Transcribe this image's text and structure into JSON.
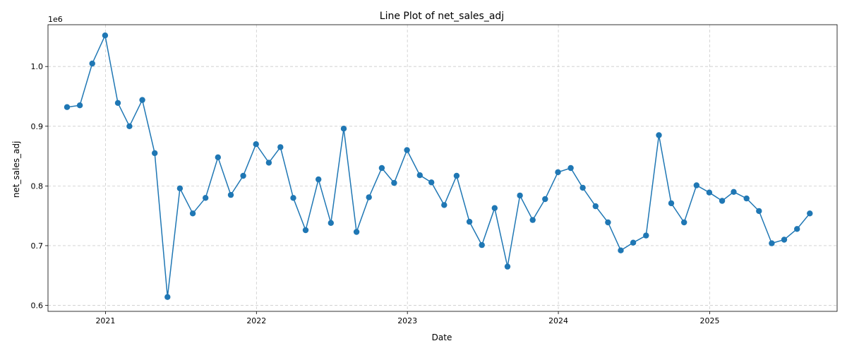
{
  "chart_data": {
    "type": "line",
    "title": "Line Plot of net_sales_adj",
    "xlabel": "Date",
    "ylabel": "net_sales_adj",
    "y_offset_label": "1e6",
    "grid": true,
    "color": "#1f77b4",
    "xlim": [
      "2020-08-15",
      "2025-11-05"
    ],
    "ylim": [
      0.59,
      1.07
    ],
    "x_ticks": [
      {
        "date": "2021-01-01",
        "label": "2021"
      },
      {
        "date": "2022-01-01",
        "label": "2022"
      },
      {
        "date": "2023-01-01",
        "label": "2023"
      },
      {
        "date": "2024-01-01",
        "label": "2024"
      },
      {
        "date": "2025-01-01",
        "label": "2025"
      }
    ],
    "y_ticks": [
      {
        "value": 0.6,
        "label": "0.6"
      },
      {
        "value": 0.7,
        "label": "0.7"
      },
      {
        "value": 0.8,
        "label": "0.8"
      },
      {
        "value": 0.9,
        "label": "0.9"
      },
      {
        "value": 1.0,
        "label": "1.0"
      }
    ],
    "series": [
      {
        "x": [
          "2020-09-30",
          "2020-10-31",
          "2020-11-30",
          "2020-12-31",
          "2021-01-31",
          "2021-02-28",
          "2021-03-31",
          "2021-04-30",
          "2021-05-31",
          "2021-06-30",
          "2021-07-31",
          "2021-08-31",
          "2021-09-30",
          "2021-10-31",
          "2021-11-30",
          "2021-12-31",
          "2022-01-31",
          "2022-02-28",
          "2022-03-31",
          "2022-04-30",
          "2022-05-31",
          "2022-06-30",
          "2022-07-31",
          "2022-08-31",
          "2022-09-30",
          "2022-10-31",
          "2022-11-30",
          "2022-12-31",
          "2023-01-31",
          "2023-02-28",
          "2023-03-31",
          "2023-04-30",
          "2023-05-31",
          "2023-06-30",
          "2023-07-31",
          "2023-08-31",
          "2023-09-30",
          "2023-10-31",
          "2023-11-30",
          "2023-12-31",
          "2024-01-31",
          "2024-02-29",
          "2024-03-31",
          "2024-04-30",
          "2024-05-31",
          "2024-06-30",
          "2024-07-31",
          "2024-08-31",
          "2024-09-30",
          "2024-10-31",
          "2024-11-30",
          "2024-12-31",
          "2025-01-31",
          "2025-02-28",
          "2025-03-31",
          "2025-04-30",
          "2025-05-31",
          "2025-06-30",
          "2025-07-31",
          "2025-08-31"
        ],
        "values": [
          0.932,
          0.935,
          1.005,
          1.052,
          0.939,
          0.9,
          0.944,
          0.855,
          0.614,
          0.796,
          0.754,
          0.78,
          0.848,
          0.785,
          0.817,
          0.87,
          0.839,
          0.865,
          0.78,
          0.726,
          0.811,
          0.738,
          0.896,
          0.723,
          0.781,
          0.83,
          0.805,
          0.86,
          0.818,
          0.806,
          0.768,
          0.817,
          0.74,
          0.701,
          0.763,
          0.665,
          0.784,
          0.743,
          0.778,
          0.823,
          0.83,
          0.797,
          0.766,
          0.739,
          0.692,
          0.705,
          0.717,
          0.885,
          0.771,
          0.739,
          0.801,
          0.789,
          0.775,
          0.79,
          0.779,
          0.758,
          0.704,
          0.71,
          0.728,
          0.754
        ]
      }
    ]
  }
}
